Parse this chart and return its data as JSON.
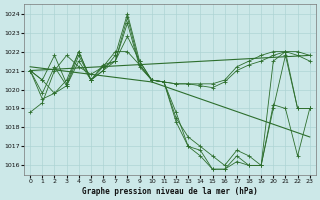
{
  "title": "Graphe pression niveau de la mer (hPa)",
  "bg_color": "#cce8e8",
  "grid_color": "#aed4d4",
  "line_color": "#2d6e2d",
  "marker_color": "#2d6e2d",
  "xlim": [
    -0.5,
    23.5
  ],
  "ylim": [
    1015.5,
    1024.5
  ],
  "yticks": [
    1016,
    1017,
    1018,
    1019,
    1020,
    1021,
    1022,
    1023,
    1024
  ],
  "xticks": [
    0,
    1,
    2,
    3,
    4,
    5,
    6,
    7,
    8,
    9,
    10,
    11,
    12,
    13,
    14,
    15,
    16,
    17,
    18,
    19,
    20,
    21,
    22,
    23
  ],
  "series": [
    [
      1018.8,
      1019.3,
      1021.0,
      1021.8,
      1021.2,
      1020.8,
      1021.2,
      1022.0,
      1022.0,
      1021.3,
      1020.5,
      1020.4,
      1020.3,
      1020.3,
      1020.3,
      1020.3,
      1020.5,
      1021.2,
      1021.5,
      1021.8,
      1022.0,
      1022.0,
      1022.0,
      1021.8
    ],
    [
      1021.0,
      1020.5,
      1021.8,
      1020.3,
      1022.0,
      1020.5,
      1021.2,
      1021.5,
      1022.8,
      1021.5,
      1020.5,
      1020.4,
      1020.3,
      1020.3,
      1020.2,
      1020.1,
      1020.4,
      1021.0,
      1021.3,
      1021.5,
      1021.8,
      1022.0,
      1021.8,
      1021.5
    ],
    [
      1021.0,
      1019.8,
      1021.2,
      1020.2,
      1021.5,
      1020.5,
      1021.0,
      1021.5,
      1023.5,
      1021.2,
      1020.5,
      1020.4,
      1018.5,
      1017.5,
      1017.0,
      1016.5,
      1016.0,
      1016.8,
      1016.5,
      1016.0,
      1019.2,
      1019.0,
      1016.5,
      1019.0
    ],
    [
      1021.0,
      1019.5,
      1019.8,
      1020.5,
      1022.0,
      1020.5,
      1021.3,
      1021.5,
      1023.8,
      1021.3,
      1020.5,
      1020.4,
      1018.3,
      1017.0,
      1016.8,
      1015.8,
      1015.8,
      1016.5,
      1016.0,
      1016.0,
      1019.0,
      1021.8,
      1019.0,
      1019.0
    ],
    [
      1021.0,
      1020.5,
      1019.8,
      1020.2,
      1021.8,
      1020.5,
      1021.0,
      1021.8,
      1024.0,
      1021.5,
      1020.5,
      1020.4,
      1018.8,
      1017.0,
      1016.5,
      1015.8,
      1015.8,
      1016.2,
      1016.0,
      1016.0,
      1021.5,
      1022.0,
      1019.0,
      1019.0
    ]
  ],
  "trend1_x": [
    0,
    10
  ],
  "trend1_y": [
    1021.2,
    1020.4
  ],
  "trend2_x": [
    10,
    23
  ],
  "trend2_y": [
    1020.4,
    1017.5
  ],
  "trend3_x": [
    0,
    23
  ],
  "trend3_y": [
    1021.0,
    1021.8
  ]
}
